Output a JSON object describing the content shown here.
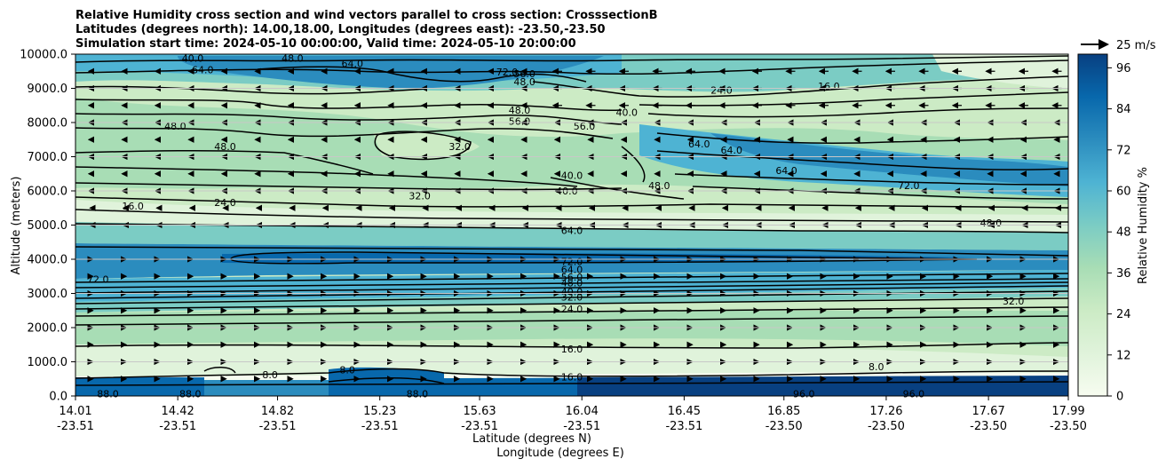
{
  "chart_data": {
    "type": "contourf",
    "title_lines": [
      "Relative Humidity cross section and wind vectors parallel to cross section: CrosssectionB",
      "Latitudes (degrees north): 14.00,18.00, Longitudes (degrees east): -23.50,-23.50",
      "Simulation start time: 2024-05-10 00:00:00, Valid time: 2024-05-10 20:00:00"
    ],
    "ylabel": "Altitude (meters)",
    "xlabel_lat": "Latitude (degrees N)",
    "xlabel_lon": "Longitude (degrees E)",
    "ylim": [
      0,
      10000
    ],
    "y_ticks": [
      0,
      1000,
      2000,
      3000,
      4000,
      5000,
      6000,
      7000,
      8000,
      9000,
      10000
    ],
    "y_tick_labels": [
      "0.0",
      "1000.0",
      "2000.0",
      "3000.0",
      "4000.0",
      "5000.0",
      "6000.0",
      "7000.0",
      "8000.0",
      "9000.0",
      "10000.0"
    ],
    "x_lat_range": [
      14.01,
      17.99
    ],
    "x_ticks_lat": [
      "14.01",
      "14.42",
      "14.82",
      "15.23",
      "15.63",
      "16.04",
      "16.45",
      "16.85",
      "17.26",
      "17.67",
      "17.99"
    ],
    "x_ticks_lon": [
      "-23.51",
      "-23.51",
      "-23.51",
      "-23.51",
      "-23.51",
      "-23.51",
      "-23.51",
      "-23.50",
      "-23.50",
      "-23.50",
      "-23.50"
    ],
    "colorbar": {
      "label": "Relative Humidity %",
      "range": [
        0,
        100
      ],
      "ticks": [
        0,
        12,
        24,
        36,
        48,
        60,
        72,
        84,
        96
      ],
      "tick_labels": [
        "0",
        "12",
        "24",
        "36",
        "48",
        "60",
        "72",
        "84",
        "96"
      ],
      "colormap": "GnBu",
      "stops": [
        "#f7fcf0",
        "#e0f3db",
        "#ccebc5",
        "#a8ddb5",
        "#7bccc4",
        "#4eb3d3",
        "#2b8cbe",
        "#0868ac",
        "#084081"
      ]
    },
    "quiver_key": {
      "label": "25 m/s",
      "magnitude": 25
    },
    "contour_levels": [
      "8.0",
      "16.0",
      "24.0",
      "32.0",
      "40.0",
      "48.0",
      "56.0",
      "64.0",
      "72.0",
      "88.0",
      "96.0"
    ],
    "contour_labels": [
      {
        "text": "40.0",
        "lat": 14.48,
        "alt": 9880
      },
      {
        "text": "48.0",
        "lat": 14.88,
        "alt": 9880
      },
      {
        "text": "64.0",
        "lat": 15.12,
        "alt": 9730
      },
      {
        "text": "56.0",
        "lat": 15.81,
        "alt": 9430
      },
      {
        "text": "48.0",
        "lat": 15.81,
        "alt": 9200
      },
      {
        "text": "72.0",
        "lat": 15.74,
        "alt": 9480
      },
      {
        "text": "24.0",
        "lat": 16.6,
        "alt": 8950
      },
      {
        "text": "16.0",
        "lat": 17.03,
        "alt": 9070
      },
      {
        "text": "64.0",
        "lat": 14.52,
        "alt": 9550
      },
      {
        "text": "48.0",
        "lat": 15.79,
        "alt": 8370
      },
      {
        "text": "56.0",
        "lat": 15.79,
        "alt": 8040
      },
      {
        "text": "56.0",
        "lat": 16.05,
        "alt": 7900
      },
      {
        "text": "40.0",
        "lat": 16.22,
        "alt": 8300
      },
      {
        "text": "48.0",
        "lat": 14.41,
        "alt": 7900
      },
      {
        "text": "48.0",
        "lat": 14.61,
        "alt": 7300
      },
      {
        "text": "32.0",
        "lat": 15.55,
        "alt": 7300
      },
      {
        "text": "64.0",
        "lat": 16.51,
        "alt": 7380
      },
      {
        "text": "64.0",
        "lat": 16.64,
        "alt": 7200
      },
      {
        "text": "64.0",
        "lat": 16.86,
        "alt": 6600
      },
      {
        "text": "40.0",
        "lat": 16.0,
        "alt": 6450
      },
      {
        "text": "40.0",
        "lat": 15.98,
        "alt": 6000
      },
      {
        "text": "48.0",
        "lat": 16.35,
        "alt": 6150
      },
      {
        "text": "72.0",
        "lat": 17.35,
        "alt": 6150
      },
      {
        "text": "16.0",
        "lat": 14.24,
        "alt": 5560
      },
      {
        "text": "24.0",
        "lat": 14.61,
        "alt": 5660
      },
      {
        "text": "32.0",
        "lat": 15.39,
        "alt": 5860
      },
      {
        "text": "48.0",
        "lat": 17.68,
        "alt": 5060
      },
      {
        "text": "64.0",
        "lat": 16.0,
        "alt": 4850
      },
      {
        "text": "72.0",
        "lat": 14.1,
        "alt": 3420
      },
      {
        "text": "72.0",
        "lat": 16.0,
        "alt": 3940
      },
      {
        "text": "64.0",
        "lat": 16.0,
        "alt": 3700
      },
      {
        "text": "56.0",
        "lat": 16.0,
        "alt": 3480
      },
      {
        "text": "48.0",
        "lat": 16.0,
        "alt": 3310
      },
      {
        "text": "40.0",
        "lat": 16.0,
        "alt": 3050
      },
      {
        "text": "32.0",
        "lat": 16.0,
        "alt": 2900
      },
      {
        "text": "24.0",
        "lat": 16.0,
        "alt": 2540
      },
      {
        "text": "32.0",
        "lat": 17.77,
        "alt": 2780
      },
      {
        "text": "16.0",
        "lat": 16.0,
        "alt": 1380
      },
      {
        "text": "8.0",
        "lat": 14.79,
        "alt": 620
      },
      {
        "text": "8.0",
        "lat": 15.1,
        "alt": 760
      },
      {
        "text": "16.0",
        "lat": 16.0,
        "alt": 560
      },
      {
        "text": "8.0",
        "lat": 17.22,
        "alt": 860
      },
      {
        "text": "88.0",
        "lat": 14.14,
        "alt": 60
      },
      {
        "text": "88.0",
        "lat": 14.47,
        "alt": 60
      },
      {
        "text": "88.0",
        "lat": 15.38,
        "alt": 60
      },
      {
        "text": "96.0",
        "lat": 16.93,
        "alt": 60
      },
      {
        "text": "96.0",
        "lat": 17.37,
        "alt": 60
      }
    ]
  }
}
